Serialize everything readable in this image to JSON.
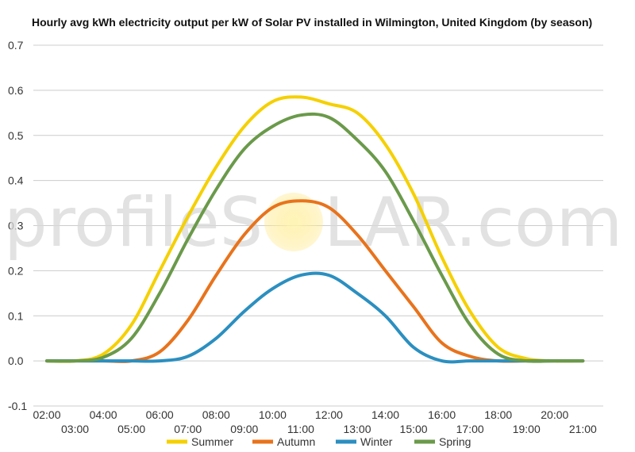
{
  "chart_data": {
    "type": "line",
    "title": "Hourly avg kWh electricity output per kW of Solar PV installed in Wilmington, United Kingdom (by season)",
    "xlabel": "",
    "ylabel": "",
    "ylim": [
      -0.1,
      0.7
    ],
    "yticks": [
      "0.7",
      "0.6",
      "0.5",
      "0.4",
      "0.3",
      "0.2",
      "0.1",
      "0.0",
      "-0.1"
    ],
    "x": [
      "02:00",
      "03:00",
      "04:00",
      "05:00",
      "06:00",
      "07:00",
      "08:00",
      "09:00",
      "10:00",
      "11:00",
      "12:00",
      "13:00",
      "14:00",
      "15:00",
      "16:00",
      "17:00",
      "18:00",
      "19:00",
      "20:00",
      "21:00"
    ],
    "grid": true,
    "legend_position": "bottom",
    "series": [
      {
        "name": "Summer",
        "color": "#f5d000",
        "values": [
          0.0,
          0.0,
          0.015,
          0.08,
          0.2,
          0.32,
          0.43,
          0.52,
          0.575,
          0.585,
          0.57,
          0.55,
          0.48,
          0.37,
          0.23,
          0.11,
          0.03,
          0.005,
          0.0,
          0.0
        ]
      },
      {
        "name": "Autumn",
        "color": "#e8731c",
        "values": [
          0.0,
          0.0,
          0.0,
          0.0,
          0.02,
          0.09,
          0.19,
          0.28,
          0.34,
          0.355,
          0.34,
          0.28,
          0.2,
          0.12,
          0.04,
          0.01,
          0.0,
          0.0,
          0.0,
          0.0
        ]
      },
      {
        "name": "Winter",
        "color": "#2b8fc0",
        "values": [
          0.0,
          0.0,
          0.0,
          0.0,
          0.0,
          0.01,
          0.05,
          0.11,
          0.16,
          0.19,
          0.19,
          0.15,
          0.1,
          0.03,
          0.0,
          0.0,
          0.0,
          0.0,
          0.0,
          0.0
        ]
      },
      {
        "name": "Spring",
        "color": "#6a9a4a",
        "values": [
          0.0,
          0.0,
          0.008,
          0.05,
          0.15,
          0.27,
          0.38,
          0.47,
          0.52,
          0.545,
          0.54,
          0.49,
          0.42,
          0.31,
          0.19,
          0.08,
          0.015,
          0.0,
          0.0,
          0.0
        ]
      }
    ]
  },
  "watermark": {
    "text_left": "profileS",
    "text_right": "LAR.com"
  }
}
